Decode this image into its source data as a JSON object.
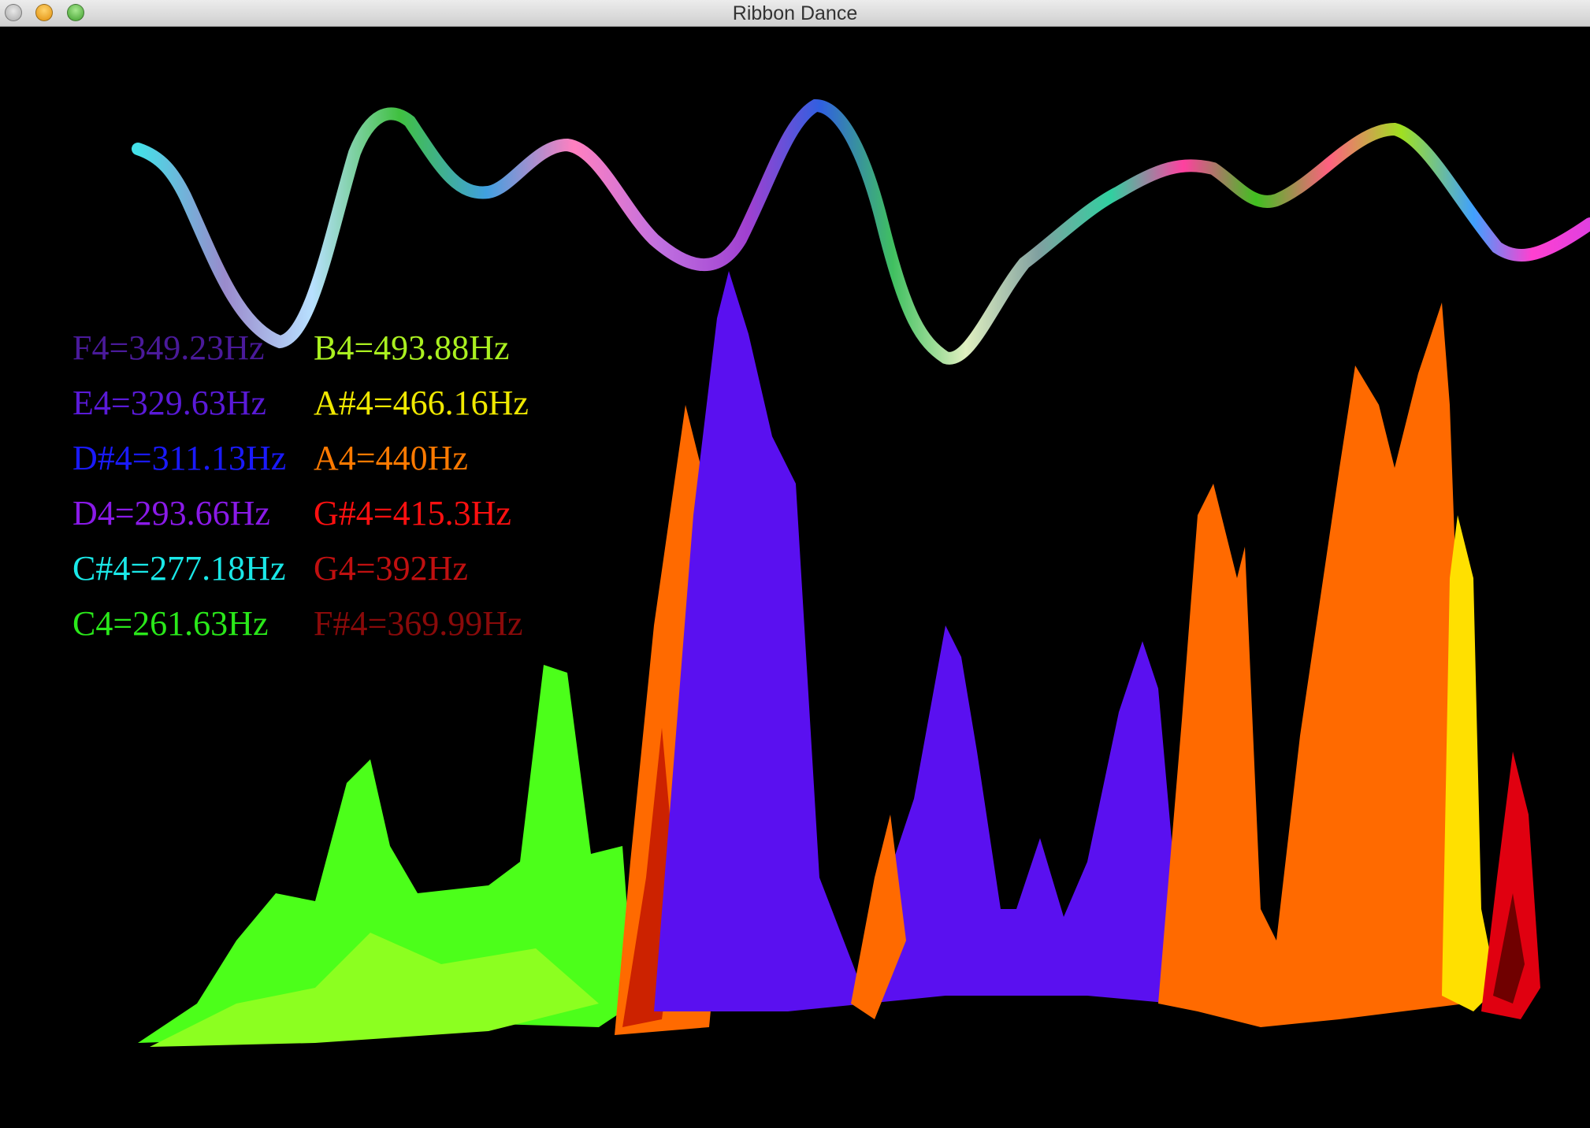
{
  "window": {
    "title": "Ribbon Dance"
  },
  "frequency_labels": {
    "left": [
      {
        "text": "F4=349.23Hz",
        "color": "#4a1a9a"
      },
      {
        "text": "E4=329.63Hz",
        "color": "#5a1ad8"
      },
      {
        "text": "D#4=311.13Hz",
        "color": "#1a1aff"
      },
      {
        "text": "D4=293.66Hz",
        "color": "#8a1ae8"
      },
      {
        "text": "C#4=277.18Hz",
        "color": "#1ae8e8"
      },
      {
        "text": "C4=261.63Hz",
        "color": "#2ae81a"
      }
    ],
    "right": [
      {
        "text": "B4=493.88Hz",
        "color": "#aaf020"
      },
      {
        "text": "A#4=466.16Hz",
        "color": "#f0e800"
      },
      {
        "text": "A4=440Hz",
        "color": "#ff7a00"
      },
      {
        "text": "G#4=415.3Hz",
        "color": "#ff1010"
      },
      {
        "text": "G4=392Hz",
        "color": "#c01010"
      },
      {
        "text": "F#4=369.99Hz",
        "color": "#8a0a0a"
      }
    ]
  }
}
